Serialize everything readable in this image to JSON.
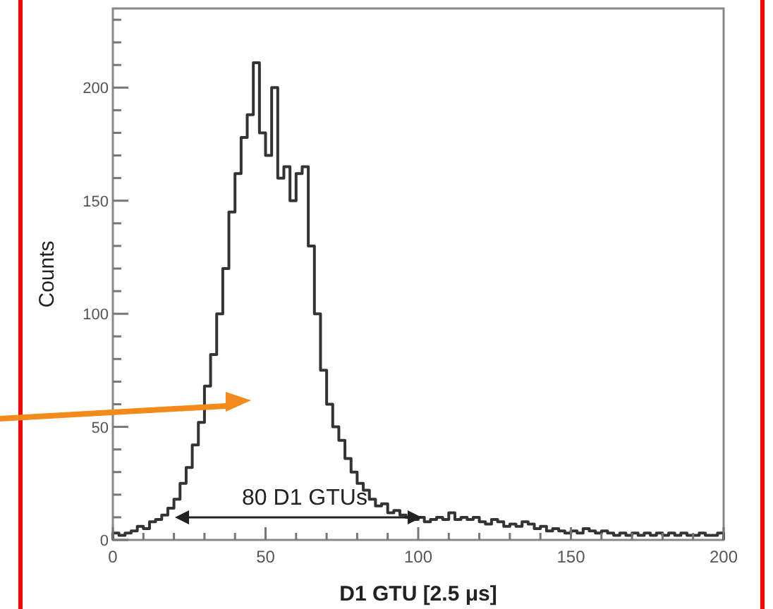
{
  "chart_data": {
    "type": "histogram",
    "xlabel": "D1 GTU [2.5 μs]",
    "ylabel": "Counts",
    "color": "#333333",
    "bins": [
      0,
      2,
      4,
      6,
      8,
      10,
      12,
      14,
      16,
      18,
      20,
      22,
      24,
      26,
      28,
      30,
      32,
      34,
      36,
      38,
      40,
      42,
      44,
      46,
      48,
      50,
      52,
      54,
      56,
      58,
      60,
      62,
      64,
      66,
      68,
      70,
      72,
      74,
      76,
      78,
      80,
      82,
      84,
      86,
      88,
      90,
      92,
      94,
      96,
      98,
      100,
      102,
      104,
      106,
      108,
      110,
      112,
      114,
      116,
      118,
      120,
      122,
      124,
      126,
      128,
      130,
      132,
      134,
      136,
      138,
      140,
      142,
      144,
      146,
      148,
      150,
      152,
      154,
      156,
      158,
      160,
      162,
      164,
      166,
      168,
      170,
      172,
      174,
      176,
      178,
      180,
      182,
      184,
      186,
      188,
      190,
      192,
      194,
      196,
      198,
      200
    ],
    "values": [
      3,
      2,
      3,
      4,
      6,
      5,
      8,
      9,
      11,
      14,
      18,
      25,
      32,
      42,
      52,
      68,
      82,
      100,
      120,
      145,
      162,
      178,
      188,
      211,
      180,
      170,
      200,
      160,
      165,
      150,
      162,
      165,
      130,
      100,
      75,
      60,
      50,
      44,
      36,
      30,
      25,
      22,
      18,
      15,
      16,
      12,
      13,
      11,
      10,
      9,
      10,
      8,
      9,
      10,
      9,
      12,
      9,
      10,
      9,
      10,
      8,
      7,
      9,
      8,
      6,
      7,
      6,
      8,
      7,
      5,
      6,
      4,
      5,
      4,
      3,
      4,
      3,
      5,
      4,
      3,
      4,
      3,
      2,
      3,
      2,
      3,
      2,
      3,
      2,
      3,
      2,
      3,
      2,
      3,
      2,
      2,
      3,
      2,
      2,
      3
    ],
    "xlim": [
      0,
      200
    ],
    "ylim": [
      0,
      235
    ],
    "xticks": [
      0,
      {
        "value": 10,
        "label": null
      },
      {
        "value": 20,
        "label": null
      },
      {
        "value": 30,
        "label": null
      },
      {
        "value": 40,
        "label": null
      },
      50,
      {
        "value": 60,
        "label": null
      },
      {
        "value": 70,
        "label": null
      },
      {
        "value": 80,
        "label": null
      },
      {
        "value": 90,
        "label": null
      },
      100,
      {
        "value": 110,
        "label": null
      },
      {
        "value": 120,
        "label": null
      },
      {
        "value": 130,
        "label": null
      },
      {
        "value": 140,
        "label": null
      },
      150,
      {
        "value": 160,
        "label": null
      },
      {
        "value": 170,
        "label": null
      },
      {
        "value": 180,
        "label": null
      },
      {
        "value": 190,
        "label": null
      },
      200
    ],
    "yticks": [
      0,
      {
        "value": 10,
        "label": null
      },
      {
        "value": 20,
        "label": null
      },
      {
        "value": 30,
        "label": null
      },
      {
        "value": 40,
        "label": null
      },
      50,
      {
        "value": 60,
        "label": null
      },
      {
        "value": 70,
        "label": null
      },
      {
        "value": 80,
        "label": null
      },
      {
        "value": 90,
        "label": null
      },
      100,
      {
        "value": 110,
        "label": null
      },
      {
        "value": 120,
        "label": null
      },
      {
        "value": 130,
        "label": null
      },
      {
        "value": 140,
        "label": null
      },
      150,
      {
        "value": 160,
        "label": null
      },
      {
        "value": 170,
        "label": null
      },
      {
        "value": 180,
        "label": null
      },
      {
        "value": 190,
        "label": null
      },
      200,
      {
        "value": 210,
        "label": null
      },
      {
        "value": 220,
        "label": null
      },
      {
        "value": 230,
        "label": null
      }
    ],
    "annotations": [
      "80 D1 GTUs"
    ]
  }
}
